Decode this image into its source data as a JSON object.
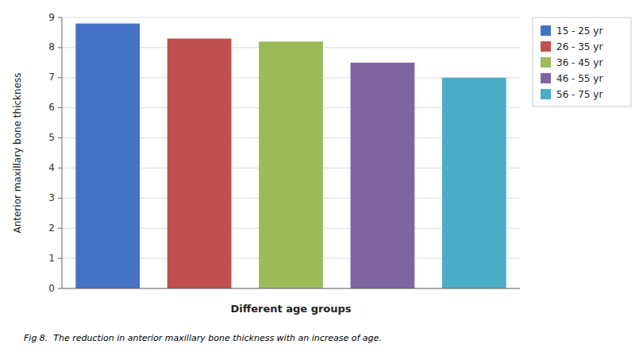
{
  "chart_data": {
    "type": "bar",
    "categories": [
      "15 - 25 yr",
      "26 - 35 yr",
      "36 - 45 yr",
      "46 - 55 yr",
      "56 - 75 yr"
    ],
    "values": [
      8.8,
      8.3,
      8.2,
      7.5,
      7.0
    ],
    "colors": [
      "#4472C4",
      "#C0504D",
      "#9BBB59",
      "#8064A2",
      "#4BACC6"
    ],
    "xlabel": "Different age groups",
    "ylabel": "Anterior maxillary bone thickness",
    "annotations": [
      "Fig 8.  The reduction in anterior maxillary bone thickness with an increase of age."
    ],
    "ylim": [
      0,
      9
    ],
    "yticks": [
      0,
      1,
      2,
      3,
      4,
      5,
      6,
      7,
      8,
      9
    ],
    "grid": true,
    "legend": "upper right",
    "tick_labels": "y"
  }
}
